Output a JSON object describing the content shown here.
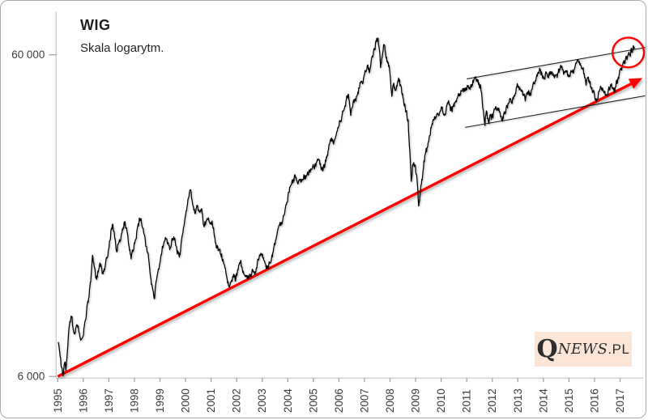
{
  "header": {
    "title": "WIG",
    "subtitle": "Skala logarytm."
  },
  "watermark": {
    "q": "Q",
    "news": "NEWS",
    "pl": ".PL"
  },
  "colors": {
    "series": "#000000",
    "trendline": "#ff0000",
    "highlight_circle": "#ff0000",
    "channel": "#1a1a1a",
    "axis": "#c6c6c6",
    "tick": "#9b9b9b",
    "tick_label": "#3d3d3d",
    "watermark_bg": "#fbe5d6",
    "background": "#ffffff"
  },
  "chart_data": {
    "type": "line",
    "title": "WIG",
    "subtitle": "Skala logarytm.",
    "y_scale": "log",
    "grid": false,
    "legend": false,
    "xlabel": "",
    "ylabel": "",
    "x_range": [
      1995,
      2018
    ],
    "ylim": [
      5700,
      70000
    ],
    "x_ticks": [
      1995,
      1996,
      1997,
      1998,
      1999,
      2000,
      2001,
      2002,
      2003,
      2004,
      2005,
      2006,
      2007,
      2008,
      2009,
      2010,
      2011,
      2012,
      2013,
      2014,
      2015,
      2016,
      2017
    ],
    "y_ticks": [
      {
        "value": 60000,
        "label": "60 000"
      },
      {
        "value": 6000,
        "label": "6 000"
      }
    ],
    "series": {
      "name": "WIG",
      "points": [
        [
          1995.02,
          7700
        ],
        [
          1995.08,
          7100
        ],
        [
          1995.15,
          6400
        ],
        [
          1995.21,
          6030
        ],
        [
          1995.27,
          6600
        ],
        [
          1995.32,
          6250
        ],
        [
          1995.38,
          7200
        ],
        [
          1995.46,
          8700
        ],
        [
          1995.54,
          9200
        ],
        [
          1995.6,
          8500
        ],
        [
          1995.67,
          8200
        ],
        [
          1995.75,
          8700
        ],
        [
          1995.83,
          8200
        ],
        [
          1995.9,
          7800
        ],
        [
          1995.96,
          7900
        ],
        [
          1996.04,
          8600
        ],
        [
          1996.13,
          9600
        ],
        [
          1996.21,
          10500
        ],
        [
          1996.29,
          11800
        ],
        [
          1996.36,
          14300
        ],
        [
          1996.44,
          13000
        ],
        [
          1996.52,
          12000
        ],
        [
          1996.6,
          12900
        ],
        [
          1996.69,
          13400
        ],
        [
          1996.77,
          12500
        ],
        [
          1996.85,
          13100
        ],
        [
          1996.96,
          14200
        ],
        [
          1997.04,
          15900
        ],
        [
          1997.1,
          17300
        ],
        [
          1997.15,
          17900
        ],
        [
          1997.23,
          16100
        ],
        [
          1997.31,
          14700
        ],
        [
          1997.4,
          15700
        ],
        [
          1997.48,
          16500
        ],
        [
          1997.56,
          17500
        ],
        [
          1997.63,
          18200
        ],
        [
          1997.71,
          16900
        ],
        [
          1997.79,
          15300
        ],
        [
          1997.87,
          13900
        ],
        [
          1997.96,
          14800
        ],
        [
          1998.04,
          16000
        ],
        [
          1998.13,
          17600
        ],
        [
          1998.21,
          18600
        ],
        [
          1998.29,
          17700
        ],
        [
          1998.38,
          16600
        ],
        [
          1998.46,
          15200
        ],
        [
          1998.54,
          14400
        ],
        [
          1998.63,
          12200
        ],
        [
          1998.71,
          11300
        ],
        [
          1998.79,
          10500
        ],
        [
          1998.88,
          12200
        ],
        [
          1998.96,
          12900
        ],
        [
          1999.04,
          14300
        ],
        [
          1999.13,
          15300
        ],
        [
          1999.21,
          16300
        ],
        [
          1999.29,
          15500
        ],
        [
          1999.38,
          14900
        ],
        [
          1999.46,
          16000
        ],
        [
          1999.54,
          16400
        ],
        [
          1999.63,
          15300
        ],
        [
          1999.71,
          14600
        ],
        [
          1999.79,
          14400
        ],
        [
          1999.88,
          16600
        ],
        [
          1999.96,
          18080
        ],
        [
          2000.04,
          19700
        ],
        [
          2000.13,
          21600
        ],
        [
          2000.2,
          22860
        ],
        [
          2000.29,
          20400
        ],
        [
          2000.38,
          19200
        ],
        [
          2000.46,
          20400
        ],
        [
          2000.54,
          19500
        ],
        [
          2000.63,
          19900
        ],
        [
          2000.71,
          17700
        ],
        [
          2000.79,
          17900
        ],
        [
          2000.88,
          18400
        ],
        [
          2000.96,
          17850
        ],
        [
          2001.04,
          18300
        ],
        [
          2001.13,
          16300
        ],
        [
          2001.21,
          15100
        ],
        [
          2001.29,
          14900
        ],
        [
          2001.38,
          14400
        ],
        [
          2001.46,
          13900
        ],
        [
          2001.54,
          13000
        ],
        [
          2001.63,
          12000
        ],
        [
          2001.71,
          11400
        ],
        [
          2001.79,
          11900
        ],
        [
          2001.88,
          12500
        ],
        [
          2001.96,
          11900
        ],
        [
          2002.04,
          12900
        ],
        [
          2002.13,
          13500
        ],
        [
          2002.21,
          13100
        ],
        [
          2002.29,
          12500
        ],
        [
          2002.38,
          12300
        ],
        [
          2002.46,
          12200
        ],
        [
          2002.56,
          12300
        ],
        [
          2002.63,
          12900
        ],
        [
          2002.71,
          12400
        ],
        [
          2002.79,
          13000
        ],
        [
          2002.88,
          14000
        ],
        [
          2002.96,
          14370
        ],
        [
          2003.04,
          14100
        ],
        [
          2003.13,
          13400
        ],
        [
          2003.21,
          13000
        ],
        [
          2003.29,
          13500
        ],
        [
          2003.38,
          14400
        ],
        [
          2003.46,
          15200
        ],
        [
          2003.54,
          16000
        ],
        [
          2003.63,
          17400
        ],
        [
          2003.71,
          17900
        ],
        [
          2003.79,
          18200
        ],
        [
          2003.88,
          19300
        ],
        [
          2003.96,
          20820
        ],
        [
          2004.04,
          22400
        ],
        [
          2004.13,
          23500
        ],
        [
          2004.21,
          24200
        ],
        [
          2004.29,
          25200
        ],
        [
          2004.38,
          24000
        ],
        [
          2004.46,
          24600
        ],
        [
          2004.54,
          24300
        ],
        [
          2004.63,
          25400
        ],
        [
          2004.71,
          24900
        ],
        [
          2004.79,
          25600
        ],
        [
          2004.88,
          26000
        ],
        [
          2004.96,
          26640
        ],
        [
          2005.04,
          26400
        ],
        [
          2005.13,
          27900
        ],
        [
          2005.21,
          28400
        ],
        [
          2005.29,
          26900
        ],
        [
          2005.38,
          26200
        ],
        [
          2005.46,
          27500
        ],
        [
          2005.54,
          29300
        ],
        [
          2005.63,
          31500
        ],
        [
          2005.71,
          33000
        ],
        [
          2005.79,
          31600
        ],
        [
          2005.88,
          33500
        ],
        [
          2005.96,
          35600
        ],
        [
          2006.04,
          37500
        ],
        [
          2006.13,
          39100
        ],
        [
          2006.21,
          40700
        ],
        [
          2006.29,
          43400
        ],
        [
          2006.37,
          45100
        ],
        [
          2006.46,
          38700
        ],
        [
          2006.54,
          41400
        ],
        [
          2006.63,
          43700
        ],
        [
          2006.71,
          44800
        ],
        [
          2006.79,
          47300
        ],
        [
          2006.88,
          49600
        ],
        [
          2006.96,
          50410
        ],
        [
          2007.04,
          53300
        ],
        [
          2007.13,
          56000
        ],
        [
          2007.19,
          52900
        ],
        [
          2007.29,
          58900
        ],
        [
          2007.38,
          62600
        ],
        [
          2007.46,
          65800
        ],
        [
          2007.53,
          67500
        ],
        [
          2007.58,
          62500
        ],
        [
          2007.63,
          54800
        ],
        [
          2007.71,
          60600
        ],
        [
          2007.77,
          64200
        ],
        [
          2007.83,
          60000
        ],
        [
          2007.88,
          57200
        ],
        [
          2007.96,
          55650
        ],
        [
          2008.02,
          50000
        ],
        [
          2008.07,
          44650
        ],
        [
          2008.13,
          48400
        ],
        [
          2008.21,
          46600
        ],
        [
          2008.29,
          48900
        ],
        [
          2008.37,
          50400
        ],
        [
          2008.46,
          45600
        ],
        [
          2008.54,
          42400
        ],
        [
          2008.63,
          39900
        ],
        [
          2008.71,
          37900
        ],
        [
          2008.79,
          28500
        ],
        [
          2008.83,
          24300
        ],
        [
          2008.88,
          27200
        ],
        [
          2008.96,
          27230
        ],
        [
          2009.04,
          25400
        ],
        [
          2009.12,
          20370
        ],
        [
          2009.21,
          23600
        ],
        [
          2009.29,
          26100
        ],
        [
          2009.38,
          29600
        ],
        [
          2009.46,
          30800
        ],
        [
          2009.54,
          33700
        ],
        [
          2009.63,
          36400
        ],
        [
          2009.71,
          37600
        ],
        [
          2009.79,
          38400
        ],
        [
          2009.88,
          39100
        ],
        [
          2009.96,
          39990
        ],
        [
          2010.04,
          41400
        ],
        [
          2010.13,
          39000
        ],
        [
          2010.21,
          41900
        ],
        [
          2010.29,
          43400
        ],
        [
          2010.38,
          40200
        ],
        [
          2010.46,
          41200
        ],
        [
          2010.54,
          42500
        ],
        [
          2010.63,
          43800
        ],
        [
          2010.71,
          45400
        ],
        [
          2010.79,
          46400
        ],
        [
          2010.88,
          45900
        ],
        [
          2010.96,
          47490
        ],
        [
          2011.04,
          47700
        ],
        [
          2011.13,
          46800
        ],
        [
          2011.21,
          48800
        ],
        [
          2011.29,
          50370
        ],
        [
          2011.38,
          49500
        ],
        [
          2011.46,
          48500
        ],
        [
          2011.54,
          48400
        ],
        [
          2011.6,
          44000
        ],
        [
          2011.63,
          41000
        ],
        [
          2011.67,
          38600
        ],
        [
          2011.71,
          36000
        ],
        [
          2011.75,
          39000
        ],
        [
          2011.79,
          39900
        ],
        [
          2011.83,
          38100
        ],
        [
          2011.88,
          37500
        ],
        [
          2011.92,
          39000
        ],
        [
          2011.96,
          37600
        ],
        [
          2012.04,
          39300
        ],
        [
          2012.13,
          41400
        ],
        [
          2012.21,
          41100
        ],
        [
          2012.29,
          39900
        ],
        [
          2012.38,
          37300
        ],
        [
          2012.46,
          39700
        ],
        [
          2012.54,
          40900
        ],
        [
          2012.63,
          42300
        ],
        [
          2012.71,
          43900
        ],
        [
          2012.79,
          43400
        ],
        [
          2012.88,
          44700
        ],
        [
          2012.96,
          47460
        ],
        [
          2013.04,
          47900
        ],
        [
          2013.13,
          46400
        ],
        [
          2013.21,
          44900
        ],
        [
          2013.29,
          43100
        ],
        [
          2013.38,
          46100
        ],
        [
          2013.46,
          44600
        ],
        [
          2013.54,
          46700
        ],
        [
          2013.63,
          48700
        ],
        [
          2013.71,
          50400
        ],
        [
          2013.79,
          53000
        ],
        [
          2013.85,
          54600
        ],
        [
          2013.96,
          51280
        ],
        [
          2014.04,
          50500
        ],
        [
          2014.13,
          52400
        ],
        [
          2014.21,
          51900
        ],
        [
          2014.29,
          52100
        ],
        [
          2014.38,
          52600
        ],
        [
          2014.46,
          51300
        ],
        [
          2014.54,
          51000
        ],
        [
          2014.63,
          54100
        ],
        [
          2014.71,
          54500
        ],
        [
          2014.79,
          51900
        ],
        [
          2014.88,
          53400
        ],
        [
          2014.96,
          51420
        ],
        [
          2015.04,
          51300
        ],
        [
          2015.13,
          52800
        ],
        [
          2015.21,
          54400
        ],
        [
          2015.29,
          56300
        ],
        [
          2015.37,
          57400
        ],
        [
          2015.46,
          55600
        ],
        [
          2015.54,
          53900
        ],
        [
          2015.63,
          51000
        ],
        [
          2015.67,
          48300
        ],
        [
          2015.71,
          50600
        ],
        [
          2015.79,
          49900
        ],
        [
          2015.88,
          47100
        ],
        [
          2015.96,
          46470
        ],
        [
          2016.04,
          43600
        ],
        [
          2016.08,
          42813
        ],
        [
          2016.17,
          46300
        ],
        [
          2016.25,
          47800
        ],
        [
          2016.33,
          46500
        ],
        [
          2016.42,
          45000
        ],
        [
          2016.48,
          44750
        ],
        [
          2016.54,
          46800
        ],
        [
          2016.63,
          48300
        ],
        [
          2016.71,
          47600
        ],
        [
          2016.79,
          46130
        ],
        [
          2016.83,
          47500
        ],
        [
          2016.88,
          48900
        ],
        [
          2016.96,
          51750
        ],
        [
          2017.04,
          54000
        ],
        [
          2017.08,
          55500
        ],
        [
          2017.13,
          57000
        ],
        [
          2017.17,
          56300
        ],
        [
          2017.21,
          58100
        ],
        [
          2017.25,
          59300
        ],
        [
          2017.29,
          59000
        ],
        [
          2017.33,
          60400
        ],
        [
          2017.38,
          60000
        ],
        [
          2017.42,
          62000
        ],
        [
          2017.46,
          61200
        ],
        [
          2017.5,
          63000
        ],
        [
          2017.54,
          62600
        ],
        [
          2017.57,
          63500
        ]
      ]
    },
    "annotations": {
      "trendline_arrow": {
        "type": "arrow",
        "color": "#ff0000",
        "x1": 1995.0,
        "v1": 6000,
        "x2": 2017.48,
        "v2": 49000
      },
      "channel": {
        "color": "#1a1a1a",
        "upper": {
          "x1": 2011.0,
          "v1": 50500,
          "x2": 2017.98,
          "v2": 63200
        },
        "lower": {
          "x1": 2010.94,
          "v1": 35700,
          "x2": 2017.98,
          "v2": 44750
        }
      },
      "highlight_circle": {
        "color": "#ff0000",
        "x": 2017.32,
        "v": 61000,
        "radius_px": 19
      }
    }
  }
}
